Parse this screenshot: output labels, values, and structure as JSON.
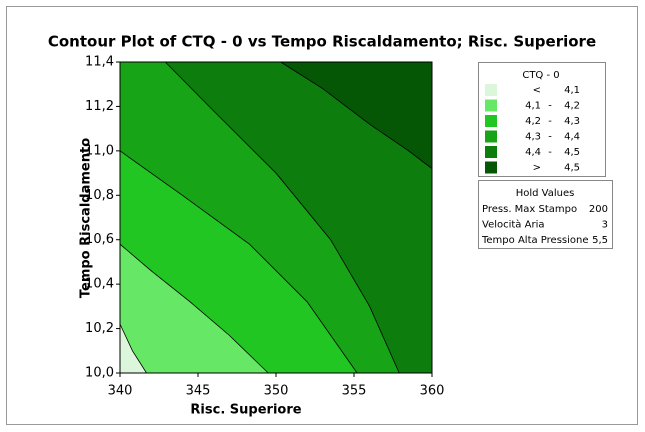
{
  "chart_data": {
    "type": "contour",
    "title": "Contour Plot of CTQ - 0 vs Tempo Riscaldamento; Risc. Superiore",
    "x_label": "Risc. Superiore",
    "y_label": "Tempo Riscaldamento",
    "xlim": [
      340,
      360
    ],
    "ylim": [
      10.0,
      11.4
    ],
    "xticks": [
      340,
      345,
      350,
      355,
      360
    ],
    "yticks": [
      {
        "value": 10.0,
        "label": "10,0"
      },
      {
        "value": 10.2,
        "label": "10,2"
      },
      {
        "value": 10.4,
        "label": "10,4"
      },
      {
        "value": 10.6,
        "label": "10,6"
      },
      {
        "value": 10.8,
        "label": "10,8"
      },
      {
        "value": 11.0,
        "label": "11,0"
      },
      {
        "value": 11.2,
        "label": "11,2"
      },
      {
        "value": 11.4,
        "label": "11,4"
      }
    ],
    "contours": [
      {
        "level": 4.1,
        "x": [
          340,
          340.8,
          341.7
        ],
        "y": [
          10.22,
          10.1,
          10.0
        ]
      },
      {
        "level": 4.2,
        "x": [
          340,
          342,
          344.5,
          347,
          349.5
        ],
        "y": [
          10.58,
          10.46,
          10.32,
          10.17,
          10.0
        ]
      },
      {
        "level": 4.3,
        "x": [
          340,
          344,
          348.3,
          352,
          355.2
        ],
        "y": [
          11.0,
          10.8,
          10.58,
          10.32,
          10.0
        ]
      },
      {
        "level": 4.4,
        "x": [
          342.9,
          346,
          350,
          353.5,
          356,
          357.9
        ],
        "y": [
          11.4,
          11.18,
          10.9,
          10.6,
          10.3,
          10.0
        ]
      },
      {
        "level": 4.5,
        "x": [
          350.3,
          353,
          356,
          358.5,
          360
        ],
        "y": [
          11.4,
          11.28,
          11.12,
          11.0,
          10.92
        ]
      }
    ],
    "legend": {
      "title": "CTQ - 0",
      "entries": [
        {
          "from": "<",
          "to": "4,1",
          "color": "#dcf6dc"
        },
        {
          "from": "4,1",
          "sep": "-",
          "to": "4,2",
          "color": "#66e866"
        },
        {
          "from": "4,2",
          "sep": "-",
          "to": "4,3",
          "color": "#22c622"
        },
        {
          "from": "4,3",
          "sep": "-",
          "to": "4,4",
          "color": "#17a417"
        },
        {
          "from": "4,4",
          "sep": "-",
          "to": "4,5",
          "color": "#0d7e0d"
        },
        {
          "from": ">",
          "to": "4,5",
          "color": "#055705"
        }
      ]
    },
    "hold_values": {
      "title": "Hold Values",
      "rows": [
        [
          "Press. Max Stampo",
          "200"
        ],
        [
          "Velocità Aria",
          "3"
        ],
        [
          "Tempo Alta Pressione",
          "5,5"
        ]
      ]
    }
  }
}
